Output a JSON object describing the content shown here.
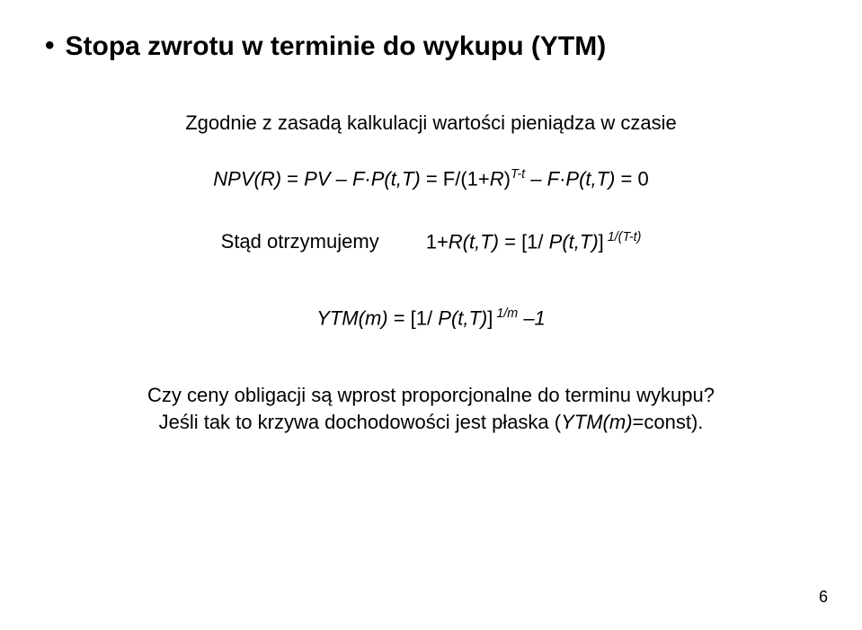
{
  "title": "Stopa zwrotu w terminie do wykupu (YTM)",
  "intro": "Zgodnie z zasadą kalkulacji wartości pieniądza w czasie",
  "eq1": {
    "lhs_prefix": "NPV(R)",
    "eq": " = ",
    "rhs_a": "PV – F",
    "dot1": "·",
    "rhs_b": "P(t,T)",
    "eq2": " = ",
    "rhs_c": "F/",
    "paren": "(1+",
    "R": "R",
    "paren2": ")",
    "exp1": "T-t",
    "minus": " – F",
    "dot2": "·",
    "rhs_d": "P(t,T)",
    "eq3": " = 0"
  },
  "eq2": {
    "label": "Stąd otrzymujemy",
    "lhs_prefix": "1+",
    "lhs": "R(t,T)",
    "eq": " = [1/ ",
    "rhs": "P(t,T)",
    "close": "]",
    "exp": " 1/(T-t)"
  },
  "eq3": {
    "lhs": "YTM(m)",
    "eq": " = [1/ ",
    "rhs": "P(t,T)",
    "close": "]",
    "exp": " 1/m",
    "tail": " –1"
  },
  "para1": "Czy ceny obligacji są wprost proporcjonalne do terminu wykupu?",
  "para2a": "Jeśli tak to krzywa dochodowości jest płaska (",
  "para2b": "YTM(m)",
  "para2c": "=const).",
  "pagenum": "6"
}
